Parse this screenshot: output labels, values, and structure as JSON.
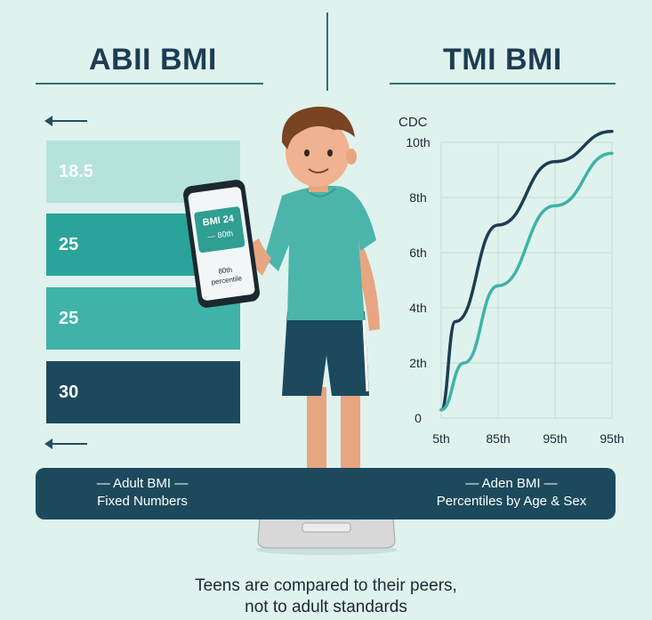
{
  "left": {
    "title": "ABII BMI",
    "bars": [
      {
        "label": "18.5",
        "color": "#b6e2dc",
        "text_color": "#ffffff"
      },
      {
        "label": "25",
        "color": "#2aa49a",
        "text_color": "#ffffff"
      },
      {
        "label": "25",
        "color": "#3fb3a8",
        "text_color": "#ffffff"
      },
      {
        "label": "30",
        "color": "#1c4a5c",
        "text_color": "#ffffff"
      }
    ]
  },
  "right": {
    "title": "TMI BMI"
  },
  "phone": {
    "bmi_line": "BMI 24",
    "pct_line": "— 80th",
    "pct_label_1": "80th",
    "pct_label_2": "percentile"
  },
  "banner": {
    "left_line1": "— Adult BMI —",
    "left_line2": "Fixed Numbers",
    "right_line1": "— Aden BMI —",
    "right_line2": "Percentiles by Age & Sex"
  },
  "footer": {
    "line1": "Teens are compared to their peers,",
    "line2": "not to adult standards"
  },
  "chart_data": {
    "type": "line",
    "title": "CDC",
    "y_ticks": [
      "0",
      "2th",
      "4th",
      "6th",
      "8th",
      "10th"
    ],
    "x_ticks": [
      "5th",
      "85th",
      "95th",
      "95th"
    ],
    "series": [
      {
        "color": "#1c3d52",
        "x": [
          0,
          0.25,
          1,
          2,
          3
        ],
        "y": [
          0.3,
          3.5,
          7.0,
          9.3,
          10.4
        ]
      },
      {
        "color": "#3fb3a8",
        "x": [
          0,
          0.4,
          1,
          2,
          3
        ],
        "y": [
          0.3,
          2.0,
          4.8,
          7.7,
          9.6
        ]
      }
    ],
    "xlim": [
      0,
      3
    ],
    "ylim": [
      0,
      10
    ],
    "grid": true
  },
  "colors": {
    "accent": "#3fb3a8",
    "dark": "#1c4a5c",
    "background": "#dff2ee"
  }
}
